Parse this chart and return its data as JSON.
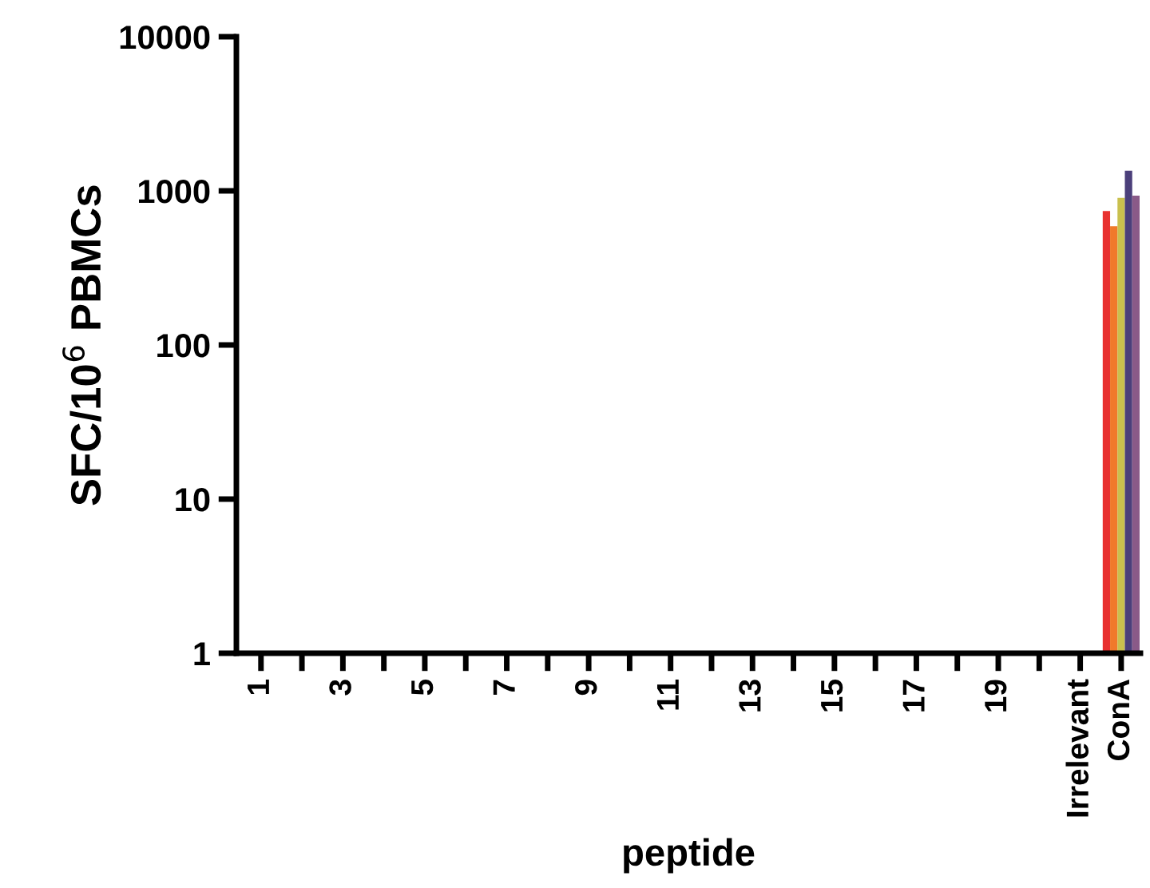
{
  "chart_data": {
    "type": "bar",
    "xlabel": "peptide",
    "ylabel": "SFC/10$^{6}$ PBMCs",
    "categories": [
      "1",
      null,
      "3",
      null,
      "5",
      null,
      "7",
      null,
      "9",
      null,
      "11",
      null,
      "13",
      null,
      "15",
      null,
      "17",
      null,
      "19",
      null,
      "Irrelevant",
      "ConA"
    ],
    "series": [
      {
        "color": "#e8312f",
        "values": [
          null,
          null,
          null,
          null,
          null,
          null,
          null,
          null,
          null,
          null,
          null,
          null,
          null,
          null,
          null,
          null,
          null,
          null,
          null,
          null,
          null,
          740
        ]
      },
      {
        "color": "#f07a2a",
        "values": [
          null,
          null,
          null,
          null,
          null,
          null,
          null,
          null,
          null,
          null,
          null,
          null,
          null,
          null,
          null,
          null,
          null,
          null,
          null,
          null,
          null,
          590
        ]
      },
      {
        "color": "#c9c04e",
        "values": [
          null,
          null,
          null,
          null,
          null,
          null,
          null,
          null,
          null,
          null,
          null,
          null,
          null,
          null,
          null,
          null,
          null,
          null,
          null,
          null,
          null,
          900
        ]
      },
      {
        "color": "#4b3f7a",
        "values": [
          null,
          null,
          null,
          null,
          null,
          null,
          null,
          null,
          null,
          null,
          null,
          null,
          null,
          null,
          null,
          null,
          null,
          null,
          null,
          null,
          null,
          1350
        ]
      },
      {
        "color": "#8a5a88",
        "values": [
          null,
          null,
          null,
          null,
          null,
          null,
          null,
          null,
          null,
          null,
          null,
          null,
          null,
          null,
          null,
          null,
          null,
          null,
          null,
          null,
          null,
          930
        ]
      }
    ],
    "log": true,
    "ylim": [
      1,
      10000
    ],
    "yticks": [
      1,
      10,
      100,
      1000,
      10000
    ],
    "grid": false,
    "legend": false
  }
}
